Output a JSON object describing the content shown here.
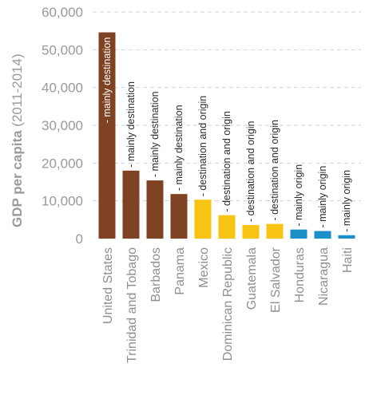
{
  "chart_data": {
    "type": "bar",
    "ylabel_bold": "GDP per capita",
    "ylabel_rest": " (2011-2014)",
    "ylim": [
      0,
      60000
    ],
    "yticks": [
      "0",
      "10,000",
      "20,000",
      "30,000",
      "40,000",
      "50,000",
      "60,000"
    ],
    "grid": true,
    "categories": [
      "United States",
      "Trinidad and Tobago",
      "Barbados",
      "Panama",
      "Mexico",
      "Dominican Republic",
      "Guatemala",
      "El Salvador",
      "Honduras",
      "Nicaragua",
      "Haiti"
    ],
    "values": [
      54600,
      18000,
      15400,
      11800,
      10300,
      6200,
      3600,
      3900,
      2400,
      2000,
      900
    ],
    "bar_labels": [
      "- mainly destination",
      "- mainly destination",
      "- mainly destination",
      "- mainly destination",
      "- destination and origin",
      "- destination and origin",
      "- destination and origin",
      "- destination and origin",
      "- mainly origin",
      "- mainly origin",
      "- mainly origin"
    ],
    "colors": [
      "#7f4323",
      "#7f4323",
      "#7f4323",
      "#7f4323",
      "#f8c413",
      "#f8c413",
      "#f8c413",
      "#f8c413",
      "#1b8fc8",
      "#1b8fc8",
      "#1b8fc8"
    ]
  }
}
